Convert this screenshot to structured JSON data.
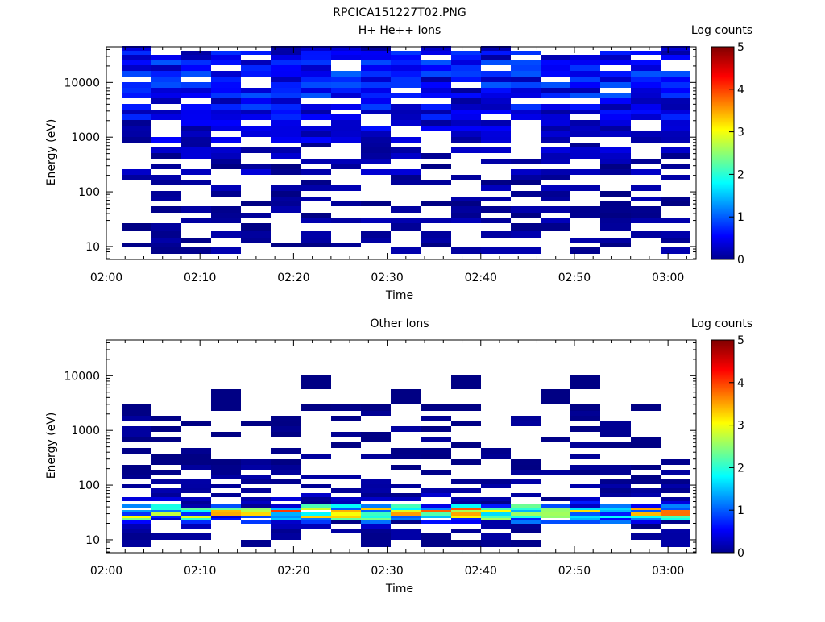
{
  "figure_title": "RPCICA151227T02.PNG",
  "colorbar_label": "Log counts",
  "colorbar_ticks": [
    "0",
    "1",
    "2",
    "3",
    "4",
    "5"
  ],
  "x_axis_label": "Time",
  "x_tick_labels": [
    "02:00",
    "02:10",
    "02:20",
    "02:30",
    "02:40",
    "02:50",
    "03:00"
  ],
  "y_axis_label": "Energy (eV)",
  "y_tick_labels": [
    "10",
    "100",
    "1000",
    "10000"
  ],
  "chart_data": [
    {
      "type": "heatmap",
      "title": "H+ He++ Ions",
      "xlabel": "Time",
      "ylabel": "Energy (eV)",
      "colorbar_label": "Log counts",
      "y_scale": "log",
      "x_range": [
        "02:00",
        "03:03"
      ],
      "y_range": [
        5.8,
        45000
      ],
      "color_range": [
        0,
        5
      ],
      "colormap": "jet",
      "time_bins": [
        "02:03:12",
        "02:06:24",
        "02:09:36",
        "02:12:48",
        "02:16:00",
        "02:19:12",
        "02:22:24",
        "02:25:36",
        "02:28:48",
        "02:32:00",
        "02:35:12",
        "02:38:24",
        "02:41:36",
        "02:44:48",
        "02:48:00",
        "02:51:12",
        "02:54:24",
        "02:57:36",
        "03:00:48"
      ],
      "bins": [
        [
          8.5,
          0.15,
          0.05
        ],
        [
          11,
          0.05,
          0.05
        ],
        [
          13,
          0.15,
          0.05
        ],
        [
          16,
          0.15,
          0.05
        ],
        [
          23,
          0.05,
          0.05
        ],
        [
          30,
          0.2,
          0.05
        ],
        [
          36,
          0.05,
          0.05
        ],
        [
          48,
          0.15,
          0.05
        ],
        [
          60,
          0.05,
          0.05
        ],
        [
          75,
          0.15,
          0.05
        ],
        [
          90,
          0.05,
          0.05
        ],
        [
          120,
          0.25,
          0.05
        ],
        [
          150,
          0.05,
          0.05
        ],
        [
          180,
          0.15,
          0.05
        ],
        [
          230,
          0.25,
          0.1
        ],
        [
          290,
          0.05,
          0.05
        ],
        [
          360,
          0.2,
          0.05
        ],
        [
          450,
          0.25,
          0.1
        ],
        [
          570,
          0.3,
          0.1
        ],
        [
          720,
          0.15,
          0.05
        ],
        [
          900,
          0.35,
          0.15
        ],
        [
          1150,
          0.3,
          0.1
        ],
        [
          1450,
          0.45,
          0.15
        ],
        [
          1800,
          0.35,
          0.15
        ],
        [
          2300,
          0.55,
          0.15
        ],
        [
          2900,
          0.45,
          0.15
        ],
        [
          3600,
          0.6,
          0.2
        ],
        [
          4500,
          0.45,
          0.15
        ],
        [
          5700,
          0.65,
          0.2
        ],
        [
          7200,
          0.5,
          0.2
        ],
        [
          9000,
          0.75,
          0.2
        ],
        [
          11500,
          0.55,
          0.2
        ],
        [
          14500,
          0.7,
          0.2
        ],
        [
          18000,
          0.55,
          0.2
        ],
        [
          23000,
          0.65,
          0.2
        ],
        [
          29000,
          0.45,
          0.15
        ],
        [
          36000,
          0.55,
          0.2
        ],
        [
          41000,
          0.3,
          0.1
        ]
      ]
    },
    {
      "type": "heatmap",
      "title": "Other Ions",
      "xlabel": "Time",
      "ylabel": "Energy (eV)",
      "colorbar_label": "Log counts",
      "y_scale": "log",
      "x_range": [
        "02:00",
        "03:03"
      ],
      "y_range": [
        5.8,
        45000
      ],
      "color_range": [
        0,
        5
      ],
      "colormap": "jet",
      "time_bins": [
        "02:03:12",
        "02:06:24",
        "02:09:36",
        "02:12:48",
        "02:16:00",
        "02:19:12",
        "02:22:24",
        "02:25:36",
        "02:28:48",
        "02:32:00",
        "02:35:12",
        "02:38:24",
        "02:41:36",
        "02:44:48",
        "02:48:00",
        "02:51:12",
        "02:54:24",
        "02:57:36",
        "03:00:48"
      ],
      "bins": [
        [
          8.5,
          0.12,
          0.05
        ],
        [
          11.5,
          0.1,
          0.05
        ],
        [
          14.5,
          0.1,
          0.05
        ],
        [
          18,
          0.2,
          0.1
        ],
        [
          21,
          0.6,
          0.35
        ],
        [
          23.5,
          1.5,
          0.6
        ],
        [
          26.5,
          2.0,
          0.8
        ],
        [
          29.5,
          2.3,
          0.8
        ],
        [
          33,
          2.6,
          0.8
        ],
        [
          37,
          2.4,
          0.8
        ],
        [
          42,
          1.3,
          0.6
        ],
        [
          48,
          0.35,
          0.2
        ],
        [
          55,
          0.25,
          0.1
        ],
        [
          65,
          0.2,
          0.1
        ],
        [
          78,
          0.15,
          0.05
        ],
        [
          95,
          0.12,
          0.05
        ],
        [
          115,
          0.1,
          0.05
        ],
        [
          140,
          0.1,
          0.05
        ],
        [
          170,
          0.1,
          0.05
        ],
        [
          210,
          0.08,
          0.05
        ],
        [
          260,
          0.06,
          0.05
        ],
        [
          330,
          0.06,
          0.05
        ],
        [
          420,
          0.05,
          0.05
        ],
        [
          560,
          0.05,
          0.05
        ],
        [
          680,
          0.05,
          0.05
        ],
        [
          850,
          0.06,
          0.05
        ],
        [
          1050,
          0.06,
          0.05
        ],
        [
          1350,
          0.05,
          0.05
        ],
        [
          1700,
          0.05,
          0.05
        ],
        [
          2000,
          0.05,
          0.05
        ],
        [
          2600,
          0.03,
          0.05
        ],
        [
          3600,
          0.02,
          0.05
        ],
        [
          9000,
          0.01,
          0.05
        ]
      ]
    }
  ]
}
